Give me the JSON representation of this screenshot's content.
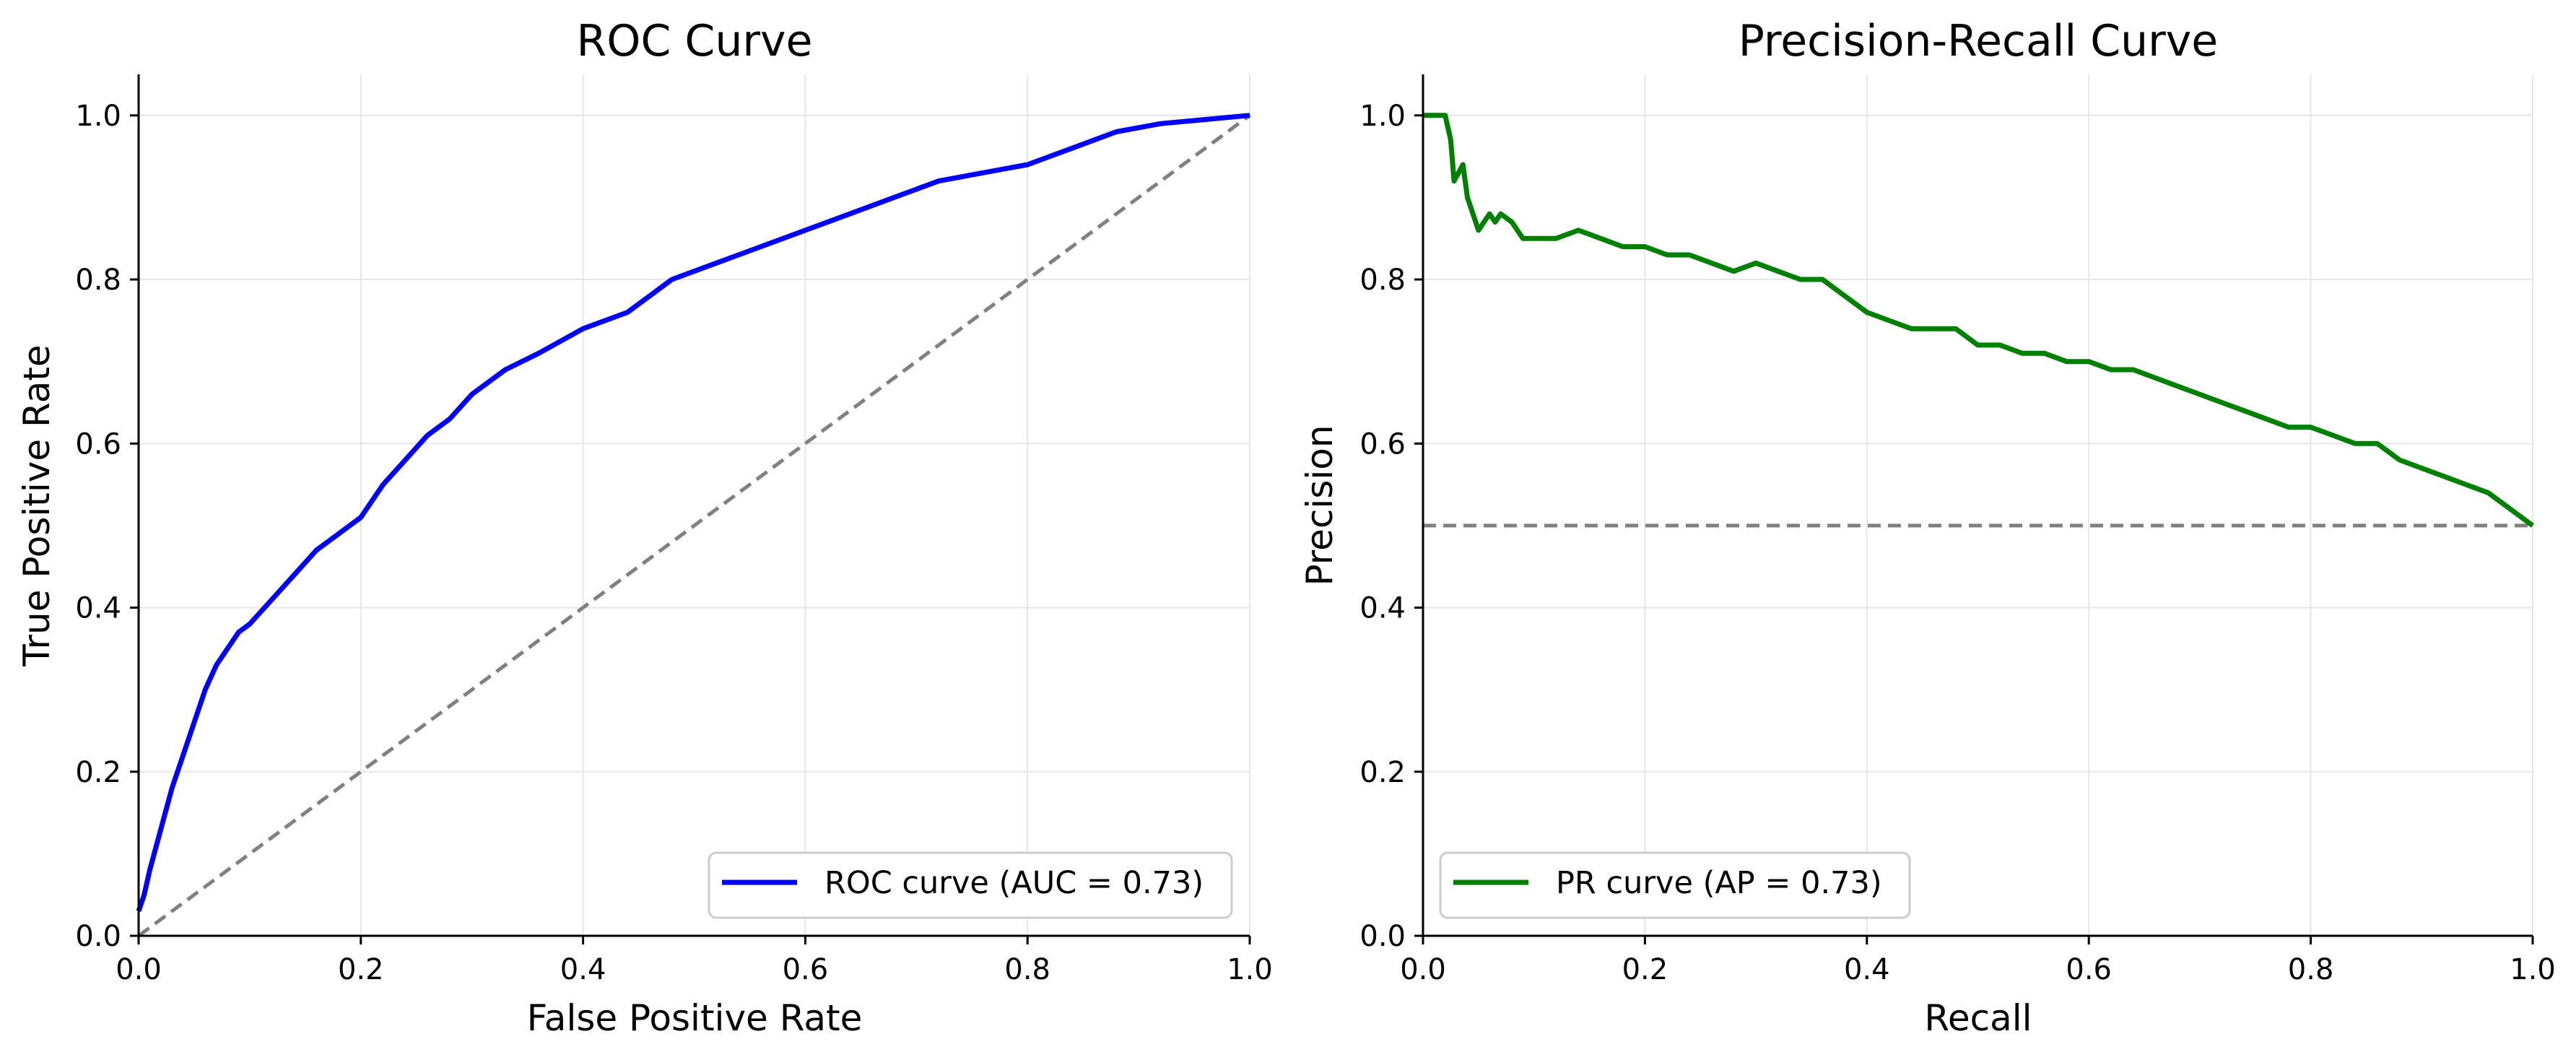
{
  "chart_data": [
    {
      "type": "line",
      "title": "ROC Curve",
      "xlabel": "False Positive Rate",
      "ylabel": "True Positive Rate",
      "xlim": [
        0,
        1
      ],
      "ylim": [
        0,
        1.05
      ],
      "xticks": [
        "0.0",
        "0.2",
        "0.4",
        "0.6",
        "0.8",
        "1.0"
      ],
      "yticks": [
        "0.0",
        "0.2",
        "0.4",
        "0.6",
        "0.8",
        "1.0"
      ],
      "grid": true,
      "legend_position": "lower-right",
      "series": [
        {
          "name": "ROC curve (AUC = 0.73)",
          "color": "#0000ff",
          "style": "solid",
          "x": [
            0.0,
            0.005,
            0.01,
            0.02,
            0.03,
            0.04,
            0.05,
            0.06,
            0.07,
            0.08,
            0.09,
            0.1,
            0.12,
            0.14,
            0.16,
            0.18,
            0.2,
            0.22,
            0.24,
            0.26,
            0.28,
            0.3,
            0.33,
            0.36,
            0.4,
            0.44,
            0.48,
            0.52,
            0.56,
            0.6,
            0.64,
            0.68,
            0.72,
            0.76,
            0.8,
            0.84,
            0.88,
            0.92,
            0.96,
            1.0
          ],
          "y": [
            0.03,
            0.05,
            0.08,
            0.13,
            0.18,
            0.22,
            0.26,
            0.3,
            0.33,
            0.35,
            0.37,
            0.38,
            0.41,
            0.44,
            0.47,
            0.49,
            0.51,
            0.55,
            0.58,
            0.61,
            0.63,
            0.66,
            0.69,
            0.71,
            0.74,
            0.76,
            0.8,
            0.82,
            0.84,
            0.86,
            0.88,
            0.9,
            0.92,
            0.93,
            0.94,
            0.96,
            0.98,
            0.99,
            0.995,
            1.0
          ]
        },
        {
          "name": "",
          "color": "#808080",
          "style": "dashed",
          "x": [
            0,
            1
          ],
          "y": [
            0,
            1
          ]
        }
      ]
    },
    {
      "type": "line",
      "title": "Precision-Recall Curve",
      "xlabel": "Recall",
      "ylabel": "Precision",
      "xlim": [
        0,
        1
      ],
      "ylim": [
        0,
        1.05
      ],
      "xticks": [
        "0.0",
        "0.2",
        "0.4",
        "0.6",
        "0.8",
        "1.0"
      ],
      "yticks": [
        "0.0",
        "0.2",
        "0.4",
        "0.6",
        "0.8",
        "1.0"
      ],
      "grid": true,
      "legend_position": "lower-left",
      "series": [
        {
          "name": "PR curve (AP = 0.73)",
          "color": "#008000",
          "style": "solid",
          "x": [
            0.0,
            0.02,
            0.025,
            0.028,
            0.032,
            0.036,
            0.04,
            0.045,
            0.05,
            0.055,
            0.06,
            0.065,
            0.07,
            0.08,
            0.09,
            0.1,
            0.12,
            0.14,
            0.16,
            0.18,
            0.2,
            0.22,
            0.24,
            0.26,
            0.28,
            0.3,
            0.32,
            0.34,
            0.36,
            0.38,
            0.4,
            0.42,
            0.44,
            0.46,
            0.48,
            0.5,
            0.52,
            0.54,
            0.56,
            0.58,
            0.6,
            0.62,
            0.64,
            0.66,
            0.68,
            0.7,
            0.72,
            0.74,
            0.76,
            0.78,
            0.8,
            0.82,
            0.84,
            0.86,
            0.88,
            0.9,
            0.92,
            0.94,
            0.96,
            0.98,
            1.0
          ],
          "y": [
            1.0,
            1.0,
            0.97,
            0.92,
            0.93,
            0.94,
            0.9,
            0.88,
            0.86,
            0.87,
            0.88,
            0.87,
            0.88,
            0.87,
            0.85,
            0.85,
            0.85,
            0.86,
            0.85,
            0.84,
            0.84,
            0.83,
            0.83,
            0.82,
            0.81,
            0.82,
            0.81,
            0.8,
            0.8,
            0.78,
            0.76,
            0.75,
            0.74,
            0.74,
            0.74,
            0.72,
            0.72,
            0.71,
            0.71,
            0.7,
            0.7,
            0.69,
            0.69,
            0.68,
            0.67,
            0.66,
            0.65,
            0.64,
            0.63,
            0.62,
            0.62,
            0.61,
            0.6,
            0.6,
            0.58,
            0.57,
            0.56,
            0.55,
            0.54,
            0.52,
            0.5
          ]
        },
        {
          "name": "",
          "color": "#808080",
          "style": "dashed",
          "x": [
            0,
            1
          ],
          "y": [
            0.5,
            0.5
          ]
        }
      ]
    }
  ]
}
